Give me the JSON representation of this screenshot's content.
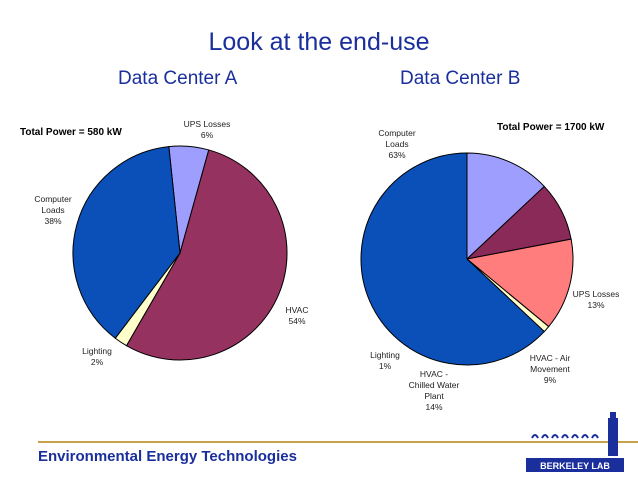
{
  "page": {
    "title": "Look at the end-use",
    "footer": "Environmental Energy Technologies",
    "logo_text": "BERKELEY LAB"
  },
  "colors": {
    "title": "#1a2f9c",
    "computer": "#0a50b8",
    "ups": "#9e9eff",
    "hvac": "#963260",
    "lighting": "#ffffcc",
    "chilled_water": "#ff7d7d",
    "air_movement": "#8a2a58",
    "gold": "#c8a24a"
  },
  "chart_data": [
    {
      "type": "pie",
      "title": "Data Center A",
      "annotation": "Total Power = 580 kW",
      "slices": [
        {
          "label": "UPS Losses",
          "pct": "6%",
          "value": 6,
          "color": "#9e9eff"
        },
        {
          "label": "HVAC",
          "pct": "54%",
          "value": 54,
          "color": "#963260"
        },
        {
          "label": "Lighting",
          "pct": "2%",
          "value": 2,
          "color": "#ffffcc"
        },
        {
          "label": "Computer Loads",
          "pct": "38%",
          "value": 38,
          "color": "#0a50b8"
        }
      ]
    },
    {
      "type": "pie",
      "title": "Data Center B",
      "annotation": "Total Power = 1700 kW",
      "slices": [
        {
          "label": "UPS Losses",
          "pct": "13%",
          "value": 13,
          "color": "#9e9eff"
        },
        {
          "label": "HVAC - Air Movement",
          "pct": "9%",
          "value": 9,
          "color": "#8a2a58"
        },
        {
          "label": "HVAC - Chilled Water Plant",
          "pct": "14%",
          "value": 14,
          "color": "#ff7d7d"
        },
        {
          "label": "Lighting",
          "pct": "1%",
          "value": 1,
          "color": "#ffffcc"
        },
        {
          "label": "Computer Loads",
          "pct": "63%",
          "value": 63,
          "color": "#0a50b8"
        }
      ]
    }
  ]
}
